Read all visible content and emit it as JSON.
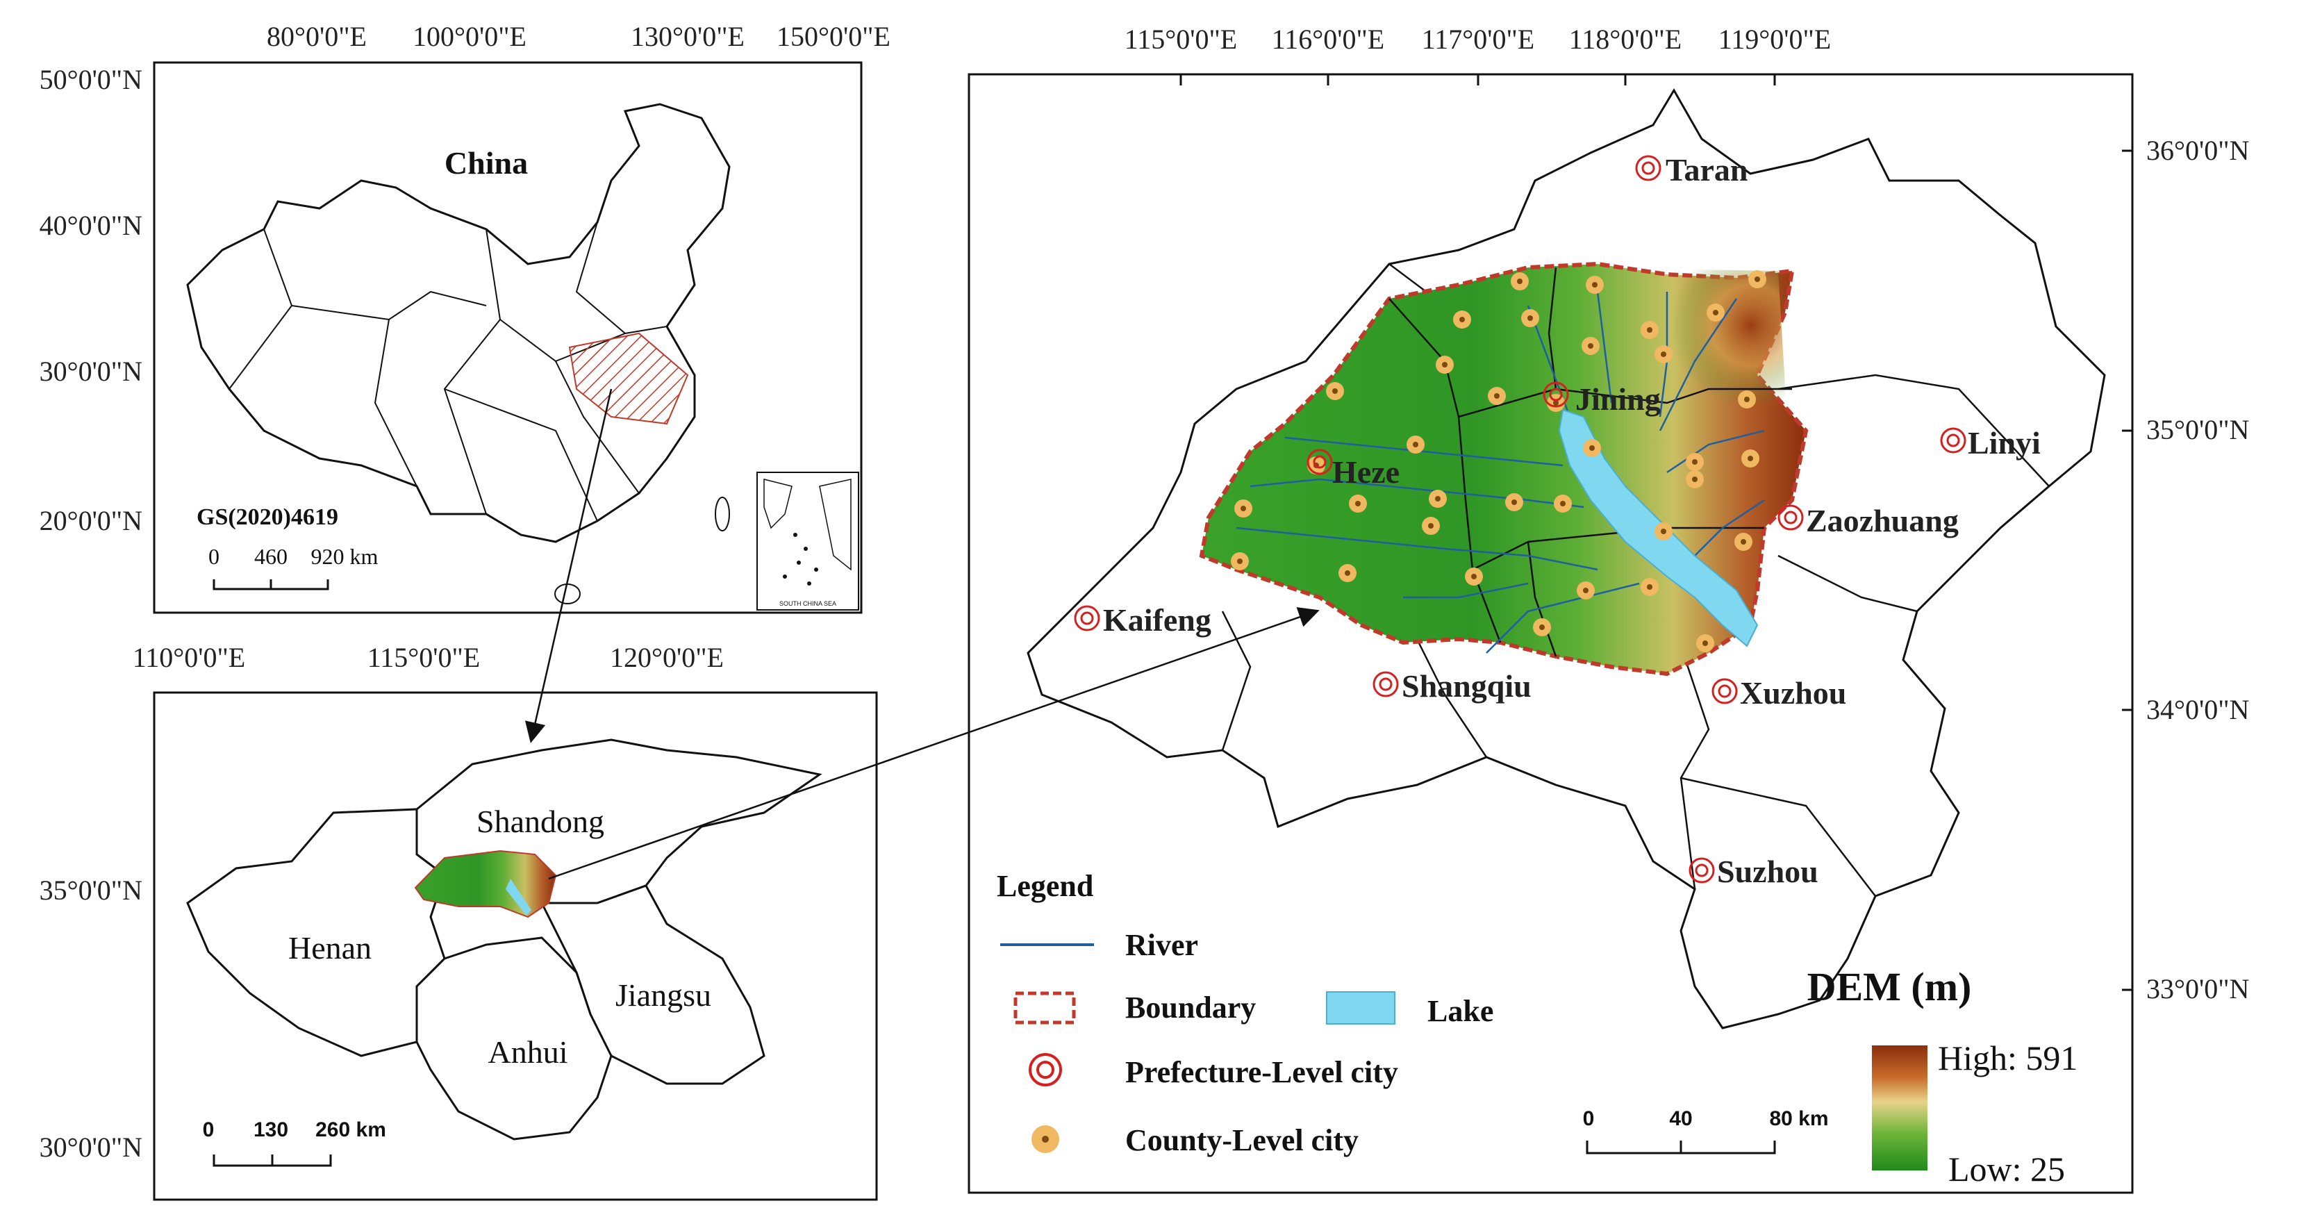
{
  "colors": {
    "boundary": "#c0392b",
    "river": "#1f5fa0",
    "lake": "#7fd8f0",
    "prefecture": "#d62020",
    "county_fill": "#f0b860",
    "county_dot": "#7a4a10",
    "dem_high": "#8b2e0d",
    "dem_mid": "#e8d38a",
    "dem_low": "#1f8a1a",
    "hatch": "#c0392b"
  },
  "china_panel": {
    "title": "China",
    "code": "GS(2020)4619",
    "x_ticks": [
      "80°0'0\"E",
      "100°0'0\"E",
      "130°0'0\"E",
      "150°0'0\"E"
    ],
    "y_ticks": [
      "50°0'0\"N",
      "40°0'0\"N",
      "30°0'0\"N",
      "20°0'0\"N"
    ],
    "scale_labels": [
      "0",
      "460",
      "920 km"
    ],
    "inset_label": "SOUTH CHINA SEA"
  },
  "region_panel": {
    "x_ticks": [
      "110°0'0\"E",
      "115°0'0\"E",
      "120°0'0\"E"
    ],
    "y_ticks": [
      "35°0'0\"N",
      "30°0'0\"N"
    ],
    "provinces": [
      "Shandong",
      "Henan",
      "Jiangsu",
      "Anhui"
    ],
    "scale_labels": [
      "0",
      "130",
      "260 km"
    ]
  },
  "main_panel": {
    "x_ticks": [
      "115°0'0\"E",
      "116°0'0\"E",
      "117°0'0\"E",
      "118°0'0\"E",
      "119°0'0\"E"
    ],
    "y_ticks": [
      "36°0'0\"N",
      "35°0'0\"N",
      "34°0'0\"N",
      "33°0'0\"N"
    ],
    "inner_cities": [
      "Jining",
      "Heze"
    ],
    "outer_cities": [
      "Taran",
      "Linyi",
      "Zaozhuang",
      "Kaifeng",
      "Shangqiu",
      "Xuzhou",
      "Suzhou"
    ],
    "scale_labels": [
      "0",
      "40",
      "80 km"
    ],
    "dem": {
      "title": "DEM (m)",
      "high_label": "High: 591",
      "low_label": "Low: 25"
    }
  },
  "legend": {
    "title": "Legend",
    "river": "River",
    "boundary": "Boundary",
    "lake": "Lake",
    "prefecture": "Prefecture-Level city",
    "county": "County-Level city"
  }
}
